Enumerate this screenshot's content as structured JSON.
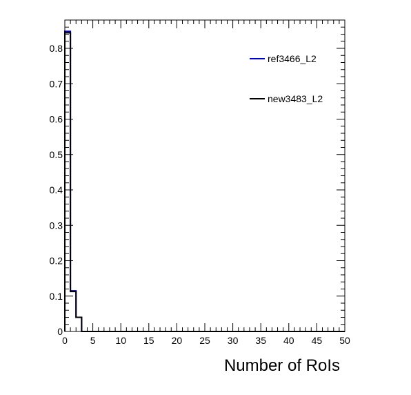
{
  "chart_data": {
    "type": "histogram",
    "xlabel": "Number of RoIs",
    "ylabel": "",
    "xlim": [
      0,
      50
    ],
    "ylim": [
      0,
      0.88
    ],
    "x_ticks": [
      "0",
      "5",
      "10",
      "15",
      "20",
      "25",
      "30",
      "35",
      "40",
      "45",
      "50"
    ],
    "y_ticks": [
      "0",
      "0.1",
      "0.2",
      "0.3",
      "0.4",
      "0.5",
      "0.6",
      "0.7",
      "0.8"
    ],
    "bin_edges": [
      0,
      1,
      2,
      3,
      4,
      5,
      6,
      7,
      8,
      9,
      10,
      11,
      12,
      13,
      14,
      15,
      16,
      17,
      18,
      19,
      20,
      21,
      22,
      23,
      24,
      25,
      26,
      27,
      28,
      29,
      30,
      31,
      32,
      33,
      34,
      35,
      36,
      37,
      38,
      39,
      40,
      41,
      42,
      43,
      44,
      45,
      46,
      47,
      48,
      49,
      50
    ],
    "series": [
      {
        "name": "ref3466_L2",
        "color": "#0000cc",
        "values": [
          0.848,
          0.115,
          0.04,
          0,
          0,
          0,
          0,
          0,
          0,
          0,
          0,
          0,
          0,
          0,
          0,
          0,
          0,
          0,
          0,
          0,
          0,
          0,
          0,
          0,
          0,
          0,
          0,
          0,
          0,
          0,
          0,
          0,
          0,
          0,
          0,
          0,
          0,
          0,
          0,
          0,
          0,
          0,
          0,
          0,
          0,
          0,
          0,
          0,
          0,
          0
        ]
      },
      {
        "name": "new3483_L2",
        "color": "#000000",
        "values": [
          0.844,
          0.113,
          0.04,
          0,
          0,
          0,
          0,
          0,
          0,
          0,
          0,
          0,
          0,
          0,
          0,
          0,
          0,
          0,
          0,
          0,
          0,
          0,
          0,
          0,
          0,
          0,
          0,
          0,
          0,
          0,
          0,
          0,
          0,
          0,
          0,
          0,
          0,
          0,
          0,
          0,
          0,
          0,
          0,
          0,
          0,
          0,
          0,
          0,
          0,
          0
        ]
      }
    ],
    "legend_position": "top-right"
  }
}
